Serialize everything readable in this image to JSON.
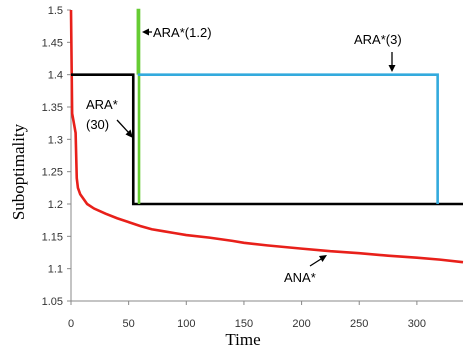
{
  "chart_data": {
    "type": "line",
    "xlabel": "Time",
    "ylabel": "Suboptimality",
    "xlim": [
      0,
      340
    ],
    "ylim": [
      1.05,
      1.5
    ],
    "x_ticks": [
      0,
      50,
      100,
      150,
      200,
      250,
      300
    ],
    "y_ticks": [
      1.05,
      1.1,
      1.15,
      1.2,
      1.25,
      1.3,
      1.35,
      1.4,
      1.45,
      1.5
    ],
    "grid": false,
    "legend": "none",
    "series": [
      {
        "name": "ANA*",
        "color": "#e8201a",
        "x": [
          0,
          1,
          3,
          4,
          5,
          6,
          8,
          10,
          14,
          20,
          30,
          40,
          50,
          60,
          70,
          80,
          90,
          100,
          120,
          140,
          150,
          170,
          200,
          225,
          250,
          275,
          300,
          320,
          340
        ],
        "y": [
          1.5,
          1.34,
          1.32,
          1.31,
          1.24,
          1.225,
          1.215,
          1.21,
          1.2,
          1.193,
          1.185,
          1.178,
          1.172,
          1.166,
          1.161,
          1.158,
          1.155,
          1.152,
          1.148,
          1.143,
          1.14,
          1.136,
          1.131,
          1.127,
          1.124,
          1.12,
          1.117,
          1.114,
          1.11
        ]
      },
      {
        "name": "ARA*(30)",
        "color": "#000000",
        "x": [
          0,
          54,
          54,
          340
        ],
        "y": [
          1.4,
          1.4,
          1.2,
          1.2
        ]
      },
      {
        "name": "ARA*(1.2)",
        "color": "#66cc33",
        "x": [
          58,
          58,
          59,
          59
        ],
        "y": [
          1.4,
          1.5,
          1.5,
          1.2
        ]
      },
      {
        "name": "ARA*(3)",
        "color": "#33aadd",
        "x": [
          58,
          318,
          318
        ],
        "y": [
          1.4,
          1.4,
          1.2
        ]
      }
    ],
    "annotations": [
      {
        "label": "ARA*(1.2)",
        "series": "ARA*(1.2)"
      },
      {
        "label": "ARA*(3)",
        "series": "ARA*(3)"
      },
      {
        "label_lines": [
          "ARA*",
          "(30)"
        ],
        "series": "ARA*(30)"
      },
      {
        "label": "ANA*",
        "series": "ANA*"
      }
    ]
  }
}
